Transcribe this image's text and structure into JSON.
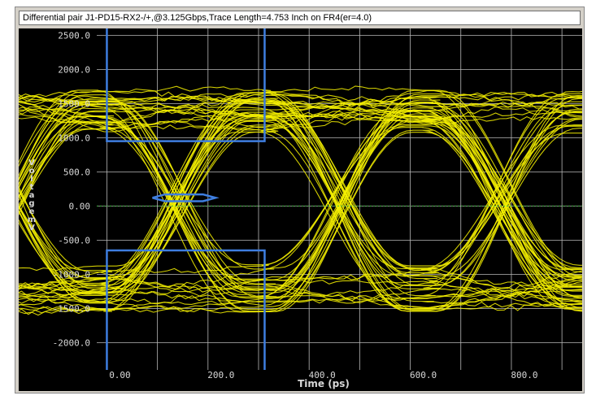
{
  "window": {
    "title": "Differential pair J1-PD15-RX2-/+,@3.125Gbps,Trace Length=4.753 Inch on FR4(er=4.0)"
  },
  "chart_data": {
    "type": "line",
    "plot_kind": "eye diagram",
    "xlabel": "Time  (ps)",
    "ylabel": "Voltage mV",
    "xlim": [
      -20,
      940
    ],
    "ylim": [
      -2400,
      2600
    ],
    "x_ticks": [
      {
        "value": 0,
        "label": "0.00"
      },
      {
        "value": 200,
        "label": "200.0"
      },
      {
        "value": 400,
        "label": "400.0"
      },
      {
        "value": 600,
        "label": "600.0"
      },
      {
        "value": 800,
        "label": "800.0"
      }
    ],
    "y_ticks": [
      {
        "value": 2500,
        "label": "2500.0"
      },
      {
        "value": 2000,
        "label": "2000.0"
      },
      {
        "value": 1500,
        "label": "1500.0"
      },
      {
        "value": 1000,
        "label": "1000.0"
      },
      {
        "value": 500,
        "label": "500.0"
      },
      {
        "value": 0,
        "label": "0.00"
      },
      {
        "value": -500,
        "label": "-500.0"
      },
      {
        "value": -1000,
        "label": "-1000.0"
      },
      {
        "value": -1500,
        "label": "-1500.0"
      },
      {
        "value": -2000,
        "label": "-2000.0"
      }
    ],
    "grid": true,
    "unit_interval_ps": 320,
    "eye_crossings_ps": [
      0,
      320,
      640
    ],
    "high_level_mv": [
      1050,
      1700
    ],
    "low_level_mv": [
      -1550,
      -850
    ],
    "masks": {
      "upper_box": {
        "x": [
          0,
          312
        ],
        "y": [
          950,
          2600
        ]
      },
      "lower_box": {
        "x": [
          0,
          312
        ],
        "y": [
          -2400,
          -650
        ]
      },
      "center_hexagon": [
        [
          90,
          120
        ],
        [
          115,
          170
        ],
        [
          190,
          170
        ],
        [
          215,
          120
        ],
        [
          190,
          70
        ],
        [
          115,
          70
        ],
        [
          90,
          120
        ]
      ]
    },
    "colors": {
      "background": "#000000",
      "grid": "#b8b8b8",
      "trace": "#f5f000",
      "mask": "#3e7ee0",
      "zero_line": "#3cb43c",
      "text": "#d8d8d8"
    }
  }
}
